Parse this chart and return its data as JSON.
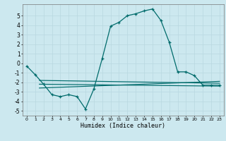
{
  "title": "",
  "xlabel": "Humidex (Indice chaleur)",
  "bg_color": "#cce8ef",
  "grid_color": "#b8d8e0",
  "line_color": "#006b6b",
  "xlim": [
    -0.5,
    23.5
  ],
  "ylim": [
    -5.5,
    6.2
  ],
  "yticks": [
    -5,
    -4,
    -3,
    -2,
    -1,
    0,
    1,
    2,
    3,
    4,
    5
  ],
  "xticks": [
    0,
    1,
    2,
    3,
    4,
    5,
    6,
    7,
    8,
    9,
    10,
    11,
    12,
    13,
    14,
    15,
    16,
    17,
    18,
    19,
    20,
    21,
    22,
    23
  ],
  "series1_x": [
    0,
    1,
    2,
    3,
    4,
    5,
    6,
    7,
    8,
    9,
    10,
    11,
    12,
    13,
    14,
    15,
    16,
    17,
    18,
    19,
    20,
    21,
    22,
    23
  ],
  "series1_y": [
    -0.3,
    -1.2,
    -2.2,
    -3.3,
    -3.5,
    -3.3,
    -3.5,
    -4.8,
    -2.7,
    0.5,
    3.9,
    4.3,
    5.0,
    5.2,
    5.5,
    5.7,
    4.5,
    2.2,
    -0.9,
    -0.9,
    -1.3,
    -2.3,
    -2.3,
    -2.3
  ],
  "line2_x": [
    1.5,
    23
  ],
  "line2_y": [
    -1.8,
    -2.1
  ],
  "line3_x": [
    1.5,
    23
  ],
  "line3_y": [
    -2.2,
    -2.4
  ],
  "line4_x": [
    1.5,
    23
  ],
  "line4_y": [
    -2.6,
    -1.9
  ]
}
